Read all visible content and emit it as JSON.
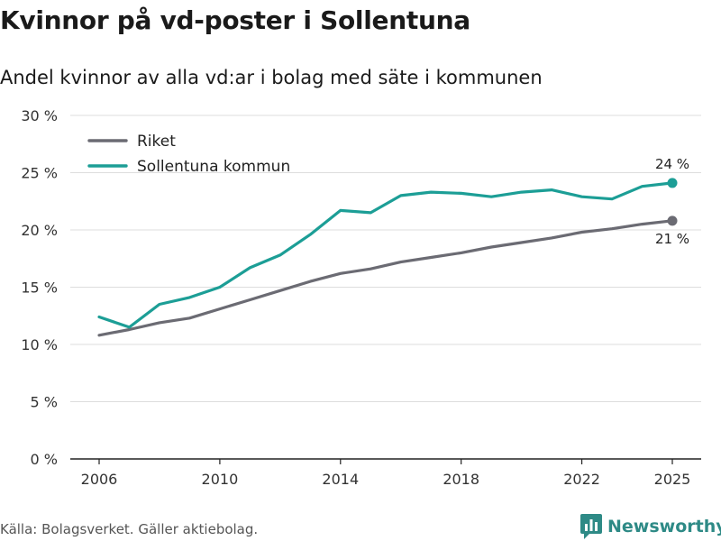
{
  "title": "Kvinnor på vd-poster i Sollentuna",
  "subtitle": "Andel kvinnor av alla vd:ar i bolag med säte i kommunen",
  "source": "Källa: Bolagsverket. Gäller aktiebolag.",
  "brand": {
    "name": "Newsworthy",
    "icon": "newsworthy-logo-icon",
    "color": "#2e8a86"
  },
  "chart_data": {
    "type": "line",
    "title": "Kvinnor på vd-poster i Sollentuna",
    "subtitle": "Andel kvinnor av alla vd:ar i bolag med säte i kommunen",
    "xlabel": "",
    "ylabel": "",
    "x": [
      2006,
      2007,
      2008,
      2009,
      2010,
      2011,
      2012,
      2013,
      2014,
      2015,
      2016,
      2017,
      2018,
      2019,
      2020,
      2021,
      2022,
      2023,
      2024,
      2025
    ],
    "xlim": [
      2006,
      2025
    ],
    "ylim": [
      0,
      30
    ],
    "x_ticks": [
      "2006",
      "2010",
      "2014",
      "2018",
      "2022",
      "2025"
    ],
    "x_tick_values": [
      2006,
      2010,
      2014,
      2018,
      2022,
      2025
    ],
    "y_ticks": [
      "0 %",
      "5 %",
      "10 %",
      "15 %",
      "20 %",
      "25 %",
      "30 %"
    ],
    "y_tick_values": [
      0,
      5,
      10,
      15,
      20,
      25,
      30
    ],
    "grid": true,
    "legend_position": "top-left",
    "series": [
      {
        "name": "Riket",
        "color": "#6b6b73",
        "values": [
          10.8,
          11.3,
          11.9,
          12.3,
          13.1,
          13.9,
          14.7,
          15.5,
          16.2,
          16.6,
          17.2,
          17.6,
          18.0,
          18.5,
          18.9,
          19.3,
          19.8,
          20.1,
          20.5,
          20.8
        ],
        "end_label": "21 %"
      },
      {
        "name": "Sollentuna kommun",
        "color": "#1c9e96",
        "values": [
          12.4,
          11.5,
          13.5,
          14.1,
          15.0,
          16.7,
          17.8,
          19.6,
          21.7,
          21.5,
          23.0,
          23.3,
          23.2,
          22.9,
          23.3,
          23.5,
          22.9,
          22.7,
          23.8,
          24.1
        ],
        "end_label": "24 %"
      }
    ]
  }
}
